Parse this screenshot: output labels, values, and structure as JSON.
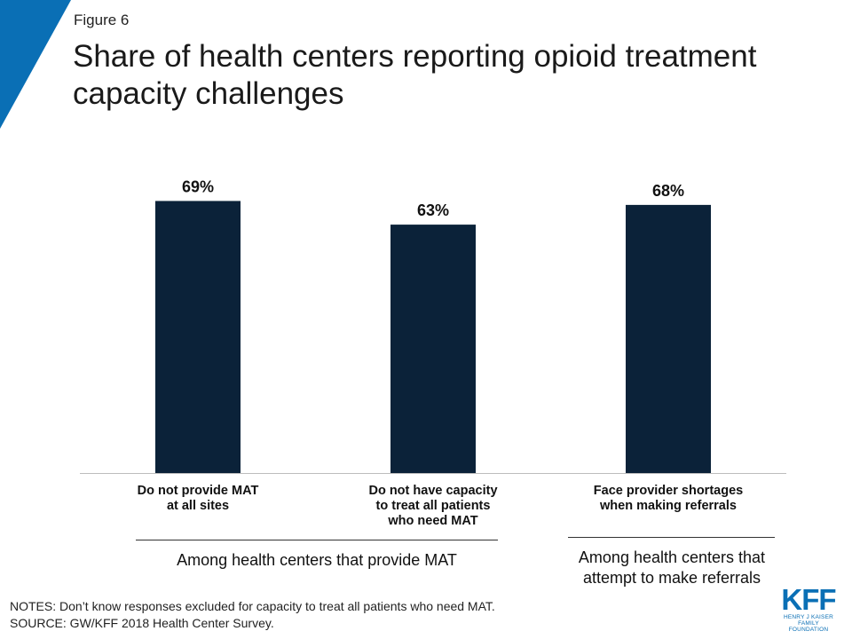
{
  "figure_label": "Figure 6",
  "title": "Share of health centers reporting opioid treatment capacity challenges",
  "colors": {
    "bar": "#0B2239",
    "accent": "#0A6FB5",
    "axis": "#bdbdbd"
  },
  "chart_data": {
    "type": "bar",
    "categories": [
      "Do not provide MAT at all sites",
      "Do not have capacity to treat all patients who need MAT",
      "Face provider shortages when making referrals"
    ],
    "category_lines": [
      [
        "Do not provide MAT",
        "at all sites"
      ],
      [
        "Do not have capacity",
        "to treat all patients",
        "who need MAT"
      ],
      [
        "Face provider shortages",
        "when making referrals"
      ]
    ],
    "values": [
      69,
      63,
      68
    ],
    "data_labels": [
      "69%",
      "63%",
      "68%"
    ],
    "ylim": [
      0,
      70
    ],
    "grid": false
  },
  "groups": [
    "Among health centers that provide MAT",
    [
      "Among health centers that",
      "attempt to make referrals"
    ]
  ],
  "notes": [
    "NOTES: Don’t know responses excluded for capacity to treat all patients who need MAT.",
    "SOURCE: GW/KFF 2018 Health Center Survey."
  ],
  "logo": {
    "main": "KFF",
    "sub": [
      "HENRY J KAISER",
      "FAMILY FOUNDATION"
    ]
  }
}
